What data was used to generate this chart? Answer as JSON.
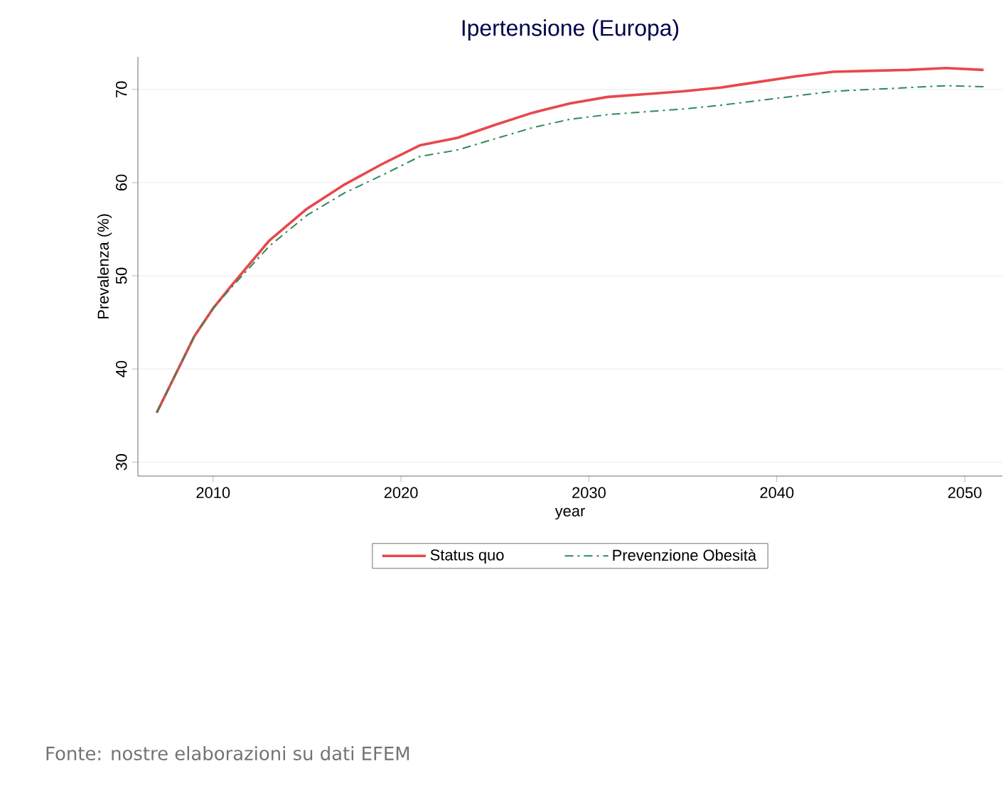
{
  "chart_data": {
    "type": "line",
    "title": "Ipertensione (Europa)",
    "xlabel": "year",
    "ylabel": "Prevalenza (%)",
    "xlim": [
      2006,
      2052
    ],
    "ylim": [
      28.5,
      73.5
    ],
    "xticks": [
      2010,
      2020,
      2030,
      2040,
      2050
    ],
    "yticks": [
      30,
      40,
      50,
      60,
      70
    ],
    "grid": "y",
    "legend": "bottom",
    "annotations": [
      "Fonte: nostre elaborazioni su dati EFEM"
    ],
    "series": [
      {
        "name": "Status quo",
        "color": "#e8474c",
        "line_style": "solid",
        "x": [
          2007,
          2009,
          2010,
          2011,
          2013,
          2015,
          2017,
          2019,
          2021,
          2023,
          2025,
          2027,
          2029,
          2031,
          2033,
          2035,
          2037,
          2039,
          2041,
          2043,
          2045,
          2047,
          2049,
          2051
        ],
        "values": [
          35.3,
          43.5,
          46.5,
          49,
          53.8,
          57.2,
          59.8,
          62,
          64,
          64.8,
          66.2,
          67.5,
          68.5,
          69.2,
          69.5,
          69.8,
          70.2,
          70.8,
          71.4,
          71.9,
          72,
          72.1,
          72.3,
          72.1
        ]
      },
      {
        "name": "Prevenzione Obesità",
        "color": "#2e8b57",
        "line_style": "dashed",
        "x": [
          2007,
          2009,
          2010,
          2011,
          2013,
          2015,
          2017,
          2019,
          2021,
          2023,
          2025,
          2027,
          2029,
          2031,
          2033,
          2035,
          2037,
          2039,
          2041,
          2043,
          2045,
          2047,
          2049,
          2051
        ],
        "values": [
          35.3,
          43.5,
          46.5,
          48.8,
          53.2,
          56.5,
          58.9,
          60.8,
          62.8,
          63.5,
          64.7,
          65.9,
          66.8,
          67.3,
          67.6,
          67.9,
          68.3,
          68.8,
          69.3,
          69.8,
          70,
          70.2,
          70.4,
          70.3
        ]
      }
    ]
  }
}
